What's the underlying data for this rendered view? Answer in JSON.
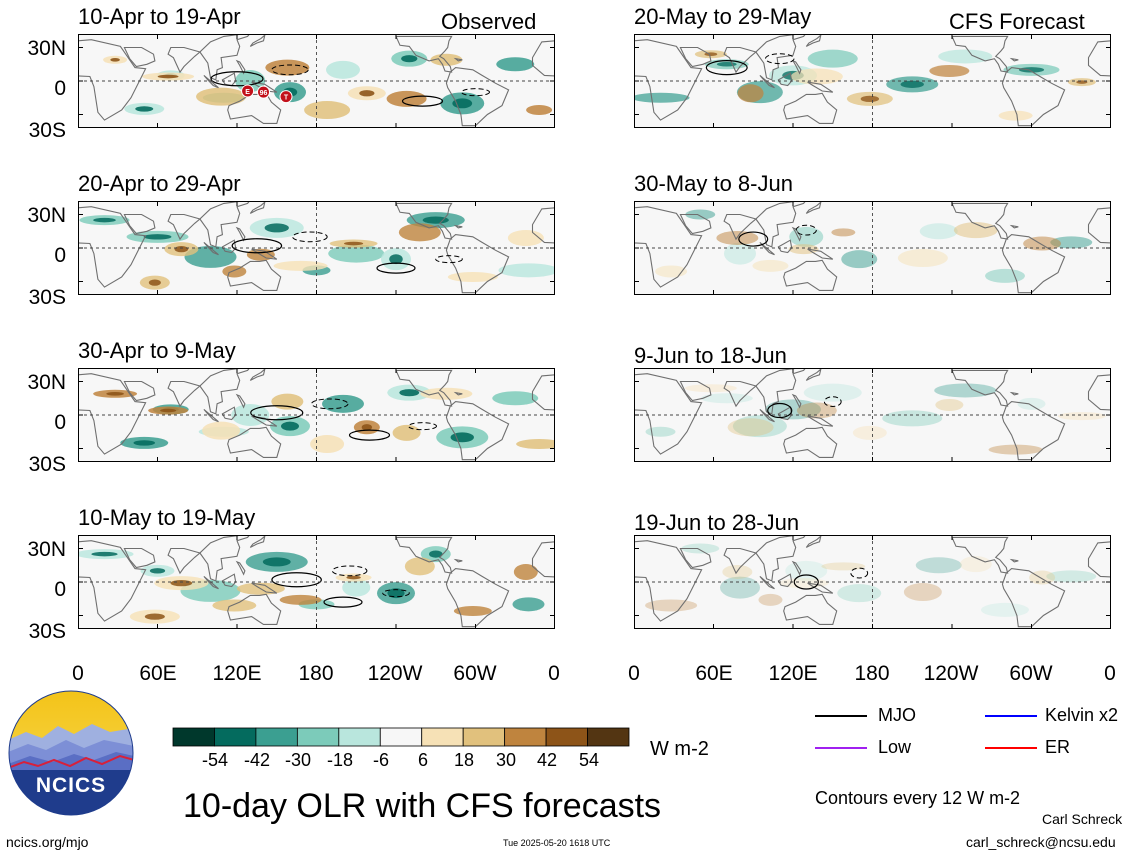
{
  "header": {
    "observed_label": "Observed",
    "forecast_label": "CFS Forecast"
  },
  "panels": [
    {
      "title": "10-Apr to 19-Apr",
      "column": "observed",
      "intensity": 1.0,
      "markers": [
        "E",
        "96",
        "T"
      ]
    },
    {
      "title": "20-Apr to 29-Apr",
      "column": "observed",
      "intensity": 0.95,
      "markers": []
    },
    {
      "title": "30-Apr to 9-May",
      "column": "observed",
      "intensity": 1.0,
      "markers": []
    },
    {
      "title": "10-May to 19-May",
      "column": "observed",
      "intensity": 0.95,
      "markers": []
    },
    {
      "title": "20-May to 29-May",
      "column": "forecast",
      "intensity": 0.85,
      "markers": []
    },
    {
      "title": "30-May to 8-Jun",
      "column": "forecast",
      "intensity": 0.6,
      "markers": []
    },
    {
      "title": "9-Jun to 18-Jun",
      "column": "forecast",
      "intensity": 0.45,
      "markers": []
    },
    {
      "title": "19-Jun to 28-Jun",
      "column": "forecast",
      "intensity": 0.35,
      "markers": []
    }
  ],
  "axes": {
    "y_ticks": [
      "30N",
      "0",
      "30S"
    ],
    "x_ticks": [
      "0",
      "60E",
      "120E",
      "180",
      "120W",
      "60W",
      "0"
    ]
  },
  "colorbar": {
    "colors": [
      "#00382c",
      "#046b5e",
      "#3b9f91",
      "#7ccbba",
      "#b9e6dd",
      "#f7f7f7",
      "#f6e1b6",
      "#e1c17d",
      "#bf843e",
      "#8d5418",
      "#533512"
    ],
    "labels": [
      "-54",
      "-42",
      "-30",
      "-18",
      "-6",
      "6",
      "18",
      "30",
      "42",
      "54"
    ],
    "units": "W m-2"
  },
  "legend": [
    {
      "label": "MJO",
      "color": "#000000"
    },
    {
      "label": "Kelvin x2",
      "color": "#0000ff"
    },
    {
      "label": "Low",
      "color": "#a020f0"
    },
    {
      "label": "ER",
      "color": "#ff0000"
    }
  ],
  "footer": {
    "title": "10-day OLR with CFS forecasts",
    "contours_note": "Contours every 12 W m-2",
    "author": "Carl Schreck",
    "email": "carl_schreck@ncsu.edu",
    "url": "ncics.org/mjo",
    "timestamp": "Tue 2025-05-20 1618 UTC",
    "logo_text": "NCICS"
  }
}
